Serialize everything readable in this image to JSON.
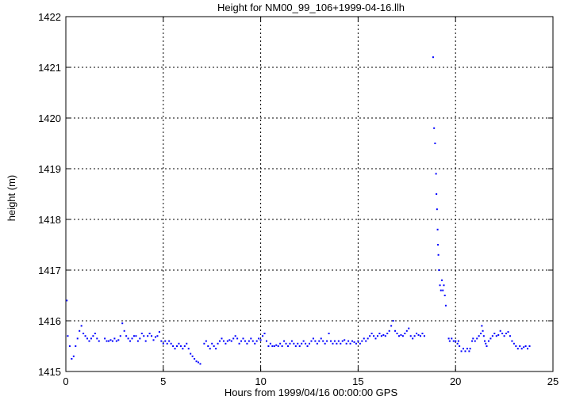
{
  "chart_data": {
    "type": "scatter",
    "title": "Height for NM00_99_106+1999-04-16.llh",
    "xlabel": "Hours from 1999/04/16 00:00:00 GPS",
    "ylabel": "height (m)",
    "xlim": [
      0,
      25
    ],
    "ylim": [
      1415,
      1422
    ],
    "xticks": [
      "0",
      "5",
      "10",
      "15",
      "20",
      "25"
    ],
    "yticks": [
      "1415",
      "1416",
      "1417",
      "1418",
      "1419",
      "1420",
      "1421",
      "1422"
    ],
    "grid": true,
    "marker_color": "#0000ff",
    "series": [
      {
        "values": [
          [
            0.05,
            1416.4
          ],
          [
            0.1,
            1415.7
          ],
          [
            0.2,
            1415.5
          ],
          [
            0.3,
            1415.25
          ],
          [
            0.4,
            1415.3
          ],
          [
            0.5,
            1415.5
          ],
          [
            0.6,
            1415.65
          ],
          [
            0.7,
            1415.8
          ],
          [
            0.8,
            1415.9
          ],
          [
            0.9,
            1415.75
          ],
          [
            1.0,
            1415.7
          ],
          [
            1.1,
            1415.65
          ],
          [
            1.2,
            1415.6
          ],
          [
            1.3,
            1415.65
          ],
          [
            1.4,
            1415.7
          ],
          [
            1.5,
            1415.75
          ],
          [
            1.6,
            1415.65
          ],
          [
            1.7,
            1415.6
          ],
          [
            2.0,
            1415.65
          ],
          [
            2.1,
            1415.6
          ],
          [
            2.2,
            1415.6
          ],
          [
            2.3,
            1415.62
          ],
          [
            2.4,
            1415.6
          ],
          [
            2.5,
            1415.65
          ],
          [
            2.6,
            1415.6
          ],
          [
            2.7,
            1415.62
          ],
          [
            2.8,
            1415.7
          ],
          [
            2.9,
            1415.95
          ],
          [
            3.0,
            1415.8
          ],
          [
            3.1,
            1415.7
          ],
          [
            3.2,
            1415.65
          ],
          [
            3.3,
            1415.6
          ],
          [
            3.4,
            1415.65
          ],
          [
            3.5,
            1415.7
          ],
          [
            3.6,
            1415.7
          ],
          [
            3.7,
            1415.6
          ],
          [
            3.8,
            1415.65
          ],
          [
            3.9,
            1415.75
          ],
          [
            4.0,
            1415.7
          ],
          [
            4.1,
            1415.6
          ],
          [
            4.2,
            1415.7
          ],
          [
            4.3,
            1415.75
          ],
          [
            4.4,
            1415.7
          ],
          [
            4.5,
            1415.62
          ],
          [
            4.6,
            1415.68
          ],
          [
            4.7,
            1415.7
          ],
          [
            4.8,
            1415.78
          ],
          [
            4.9,
            1415.6
          ],
          [
            5.0,
            1415.55
          ],
          [
            5.1,
            1415.6
          ],
          [
            5.2,
            1415.55
          ],
          [
            5.3,
            1415.6
          ],
          [
            5.4,
            1415.55
          ],
          [
            5.5,
            1415.5
          ],
          [
            5.6,
            1415.45
          ],
          [
            5.7,
            1415.5
          ],
          [
            5.8,
            1415.55
          ],
          [
            5.9,
            1415.5
          ],
          [
            6.0,
            1415.45
          ],
          [
            6.1,
            1415.5
          ],
          [
            6.2,
            1415.55
          ],
          [
            6.3,
            1415.45
          ],
          [
            6.4,
            1415.35
          ],
          [
            6.5,
            1415.3
          ],
          [
            6.6,
            1415.25
          ],
          [
            6.7,
            1415.2
          ],
          [
            6.8,
            1415.18
          ],
          [
            6.9,
            1415.15
          ],
          [
            7.1,
            1415.55
          ],
          [
            7.2,
            1415.6
          ],
          [
            7.3,
            1415.5
          ],
          [
            7.4,
            1415.45
          ],
          [
            7.5,
            1415.55
          ],
          [
            7.6,
            1415.5
          ],
          [
            7.7,
            1415.45
          ],
          [
            7.8,
            1415.55
          ],
          [
            7.9,
            1415.6
          ],
          [
            8.0,
            1415.65
          ],
          [
            8.1,
            1415.6
          ],
          [
            8.2,
            1415.55
          ],
          [
            8.3,
            1415.6
          ],
          [
            8.4,
            1415.62
          ],
          [
            8.5,
            1415.6
          ],
          [
            8.6,
            1415.65
          ],
          [
            8.7,
            1415.7
          ],
          [
            8.8,
            1415.65
          ],
          [
            8.9,
            1415.55
          ],
          [
            9.0,
            1415.6
          ],
          [
            9.1,
            1415.65
          ],
          [
            9.2,
            1415.6
          ],
          [
            9.3,
            1415.55
          ],
          [
            9.4,
            1415.6
          ],
          [
            9.5,
            1415.65
          ],
          [
            9.6,
            1415.6
          ],
          [
            9.7,
            1415.55
          ],
          [
            9.8,
            1415.6
          ],
          [
            9.9,
            1415.65
          ],
          [
            10.0,
            1415.62
          ],
          [
            10.1,
            1415.7
          ],
          [
            10.2,
            1415.75
          ],
          [
            10.3,
            1415.6
          ],
          [
            10.4,
            1415.5
          ],
          [
            10.5,
            1415.55
          ],
          [
            10.6,
            1415.5
          ],
          [
            10.7,
            1415.5
          ],
          [
            10.8,
            1415.52
          ],
          [
            10.9,
            1415.5
          ],
          [
            11.0,
            1415.55
          ],
          [
            11.1,
            1415.5
          ],
          [
            11.2,
            1415.6
          ],
          [
            11.3,
            1415.55
          ],
          [
            11.4,
            1415.5
          ],
          [
            11.5,
            1415.55
          ],
          [
            11.6,
            1415.6
          ],
          [
            11.7,
            1415.55
          ],
          [
            11.8,
            1415.5
          ],
          [
            11.9,
            1415.55
          ],
          [
            12.0,
            1415.5
          ],
          [
            12.1,
            1415.55
          ],
          [
            12.2,
            1415.6
          ],
          [
            12.3,
            1415.55
          ],
          [
            12.4,
            1415.5
          ],
          [
            12.5,
            1415.55
          ],
          [
            12.6,
            1415.6
          ],
          [
            12.7,
            1415.65
          ],
          [
            12.8,
            1415.6
          ],
          [
            12.9,
            1415.55
          ],
          [
            13.0,
            1415.6
          ],
          [
            13.1,
            1415.65
          ],
          [
            13.2,
            1415.6
          ],
          [
            13.3,
            1415.55
          ],
          [
            13.4,
            1415.6
          ],
          [
            13.5,
            1415.75
          ],
          [
            13.6,
            1415.6
          ],
          [
            13.7,
            1415.55
          ],
          [
            13.8,
            1415.6
          ],
          [
            13.9,
            1415.55
          ],
          [
            14.0,
            1415.6
          ],
          [
            14.1,
            1415.55
          ],
          [
            14.2,
            1415.6
          ],
          [
            14.3,
            1415.62
          ],
          [
            14.4,
            1415.55
          ],
          [
            14.5,
            1415.6
          ],
          [
            14.6,
            1415.55
          ],
          [
            14.7,
            1415.6
          ],
          [
            14.8,
            1415.58
          ],
          [
            14.9,
            1415.55
          ],
          [
            15.0,
            1415.6
          ],
          [
            15.1,
            1415.55
          ],
          [
            15.2,
            1415.6
          ],
          [
            15.3,
            1415.65
          ],
          [
            15.4,
            1415.6
          ],
          [
            15.5,
            1415.65
          ],
          [
            15.6,
            1415.7
          ],
          [
            15.7,
            1415.75
          ],
          [
            15.8,
            1415.7
          ],
          [
            15.9,
            1415.65
          ],
          [
            16.0,
            1415.7
          ],
          [
            16.1,
            1415.75
          ],
          [
            16.2,
            1415.7
          ],
          [
            16.3,
            1415.72
          ],
          [
            16.4,
            1415.7
          ],
          [
            16.5,
            1415.75
          ],
          [
            16.6,
            1415.8
          ],
          [
            16.7,
            1415.9
          ],
          [
            16.8,
            1416.0
          ],
          [
            16.9,
            1415.8
          ],
          [
            17.0,
            1415.75
          ],
          [
            17.1,
            1415.7
          ],
          [
            17.2,
            1415.72
          ],
          [
            17.3,
            1415.7
          ],
          [
            17.4,
            1415.75
          ],
          [
            17.5,
            1415.8
          ],
          [
            17.6,
            1415.85
          ],
          [
            17.7,
            1415.7
          ],
          [
            17.8,
            1415.65
          ],
          [
            17.9,
            1415.7
          ],
          [
            18.0,
            1415.75
          ],
          [
            18.1,
            1415.72
          ],
          [
            18.2,
            1415.7
          ],
          [
            18.3,
            1415.75
          ],
          [
            18.4,
            1415.7
          ],
          [
            18.85,
            1421.2
          ],
          [
            18.9,
            1419.8
          ],
          [
            18.95,
            1419.5
          ],
          [
            19.0,
            1418.9
          ],
          [
            19.02,
            1418.5
          ],
          [
            19.05,
            1418.2
          ],
          [
            19.08,
            1417.8
          ],
          [
            19.1,
            1417.5
          ],
          [
            19.12,
            1417.3
          ],
          [
            19.15,
            1417.0
          ],
          [
            19.2,
            1416.7
          ],
          [
            19.25,
            1416.6
          ],
          [
            19.3,
            1416.8
          ],
          [
            19.35,
            1416.6
          ],
          [
            19.4,
            1416.7
          ],
          [
            19.45,
            1416.5
          ],
          [
            19.5,
            1416.3
          ],
          [
            19.65,
            1415.65
          ],
          [
            19.7,
            1415.6
          ],
          [
            19.8,
            1415.65
          ],
          [
            19.9,
            1415.6
          ],
          [
            20.0,
            1415.6
          ],
          [
            20.1,
            1415.55
          ],
          [
            20.15,
            1415.6
          ],
          [
            20.2,
            1415.5
          ],
          [
            20.3,
            1415.4
          ],
          [
            20.4,
            1415.45
          ],
          [
            20.5,
            1415.4
          ],
          [
            20.6,
            1415.45
          ],
          [
            20.7,
            1415.4
          ],
          [
            20.75,
            1415.45
          ],
          [
            20.85,
            1415.6
          ],
          [
            20.9,
            1415.65
          ],
          [
            21.0,
            1415.6
          ],
          [
            21.1,
            1415.65
          ],
          [
            21.2,
            1415.7
          ],
          [
            21.3,
            1415.75
          ],
          [
            21.35,
            1415.9
          ],
          [
            21.4,
            1415.8
          ],
          [
            21.45,
            1415.7
          ],
          [
            21.5,
            1415.6
          ],
          [
            21.55,
            1415.55
          ],
          [
            21.6,
            1415.5
          ],
          [
            21.7,
            1415.6
          ],
          [
            21.8,
            1415.65
          ],
          [
            21.9,
            1415.7
          ],
          [
            22.0,
            1415.75
          ],
          [
            22.1,
            1415.7
          ],
          [
            22.2,
            1415.72
          ],
          [
            22.3,
            1415.8
          ],
          [
            22.4,
            1415.75
          ],
          [
            22.5,
            1415.7
          ],
          [
            22.6,
            1415.75
          ],
          [
            22.7,
            1415.78
          ],
          [
            22.8,
            1415.7
          ],
          [
            22.9,
            1415.6
          ],
          [
            23.0,
            1415.55
          ],
          [
            23.1,
            1415.5
          ],
          [
            23.2,
            1415.45
          ],
          [
            23.3,
            1415.5
          ],
          [
            23.4,
            1415.45
          ],
          [
            23.5,
            1415.48
          ],
          [
            23.6,
            1415.5
          ],
          [
            23.7,
            1415.45
          ],
          [
            23.8,
            1415.5
          ]
        ]
      }
    ]
  }
}
